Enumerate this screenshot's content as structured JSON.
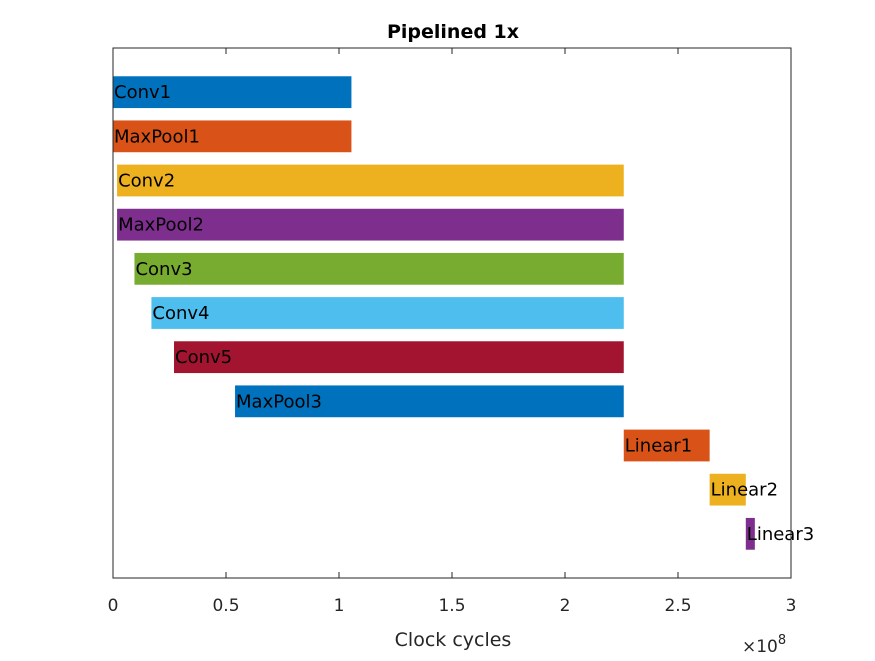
{
  "chart_data": {
    "type": "bar",
    "orientation": "horizontal-gantt",
    "title": "Pipelined 1x",
    "xlabel": "Clock cycles",
    "ylabel": "",
    "xlim": [
      0,
      3
    ],
    "x_multiplier": "×10",
    "x_multiplier_exponent": "8",
    "x_ticks": [
      "0",
      "0.5",
      "1",
      "1.5",
      "2",
      "2.5",
      "3"
    ],
    "grid": false,
    "bars": [
      {
        "label": "Conv1",
        "start": 0.0,
        "end": 1.055,
        "color": "#0072BD"
      },
      {
        "label": "MaxPool1",
        "start": 0.0,
        "end": 1.055,
        "color": "#D95319"
      },
      {
        "label": "Conv2",
        "start": 0.018,
        "end": 2.26,
        "color": "#EDB120"
      },
      {
        "label": "MaxPool2",
        "start": 0.018,
        "end": 2.26,
        "color": "#7E2F8E"
      },
      {
        "label": "Conv3",
        "start": 0.095,
        "end": 2.26,
        "color": "#77AC30"
      },
      {
        "label": "Conv4",
        "start": 0.17,
        "end": 2.26,
        "color": "#4DBEEE"
      },
      {
        "label": "Conv5",
        "start": 0.27,
        "end": 2.26,
        "color": "#A2142F"
      },
      {
        "label": "MaxPool3",
        "start": 0.54,
        "end": 2.26,
        "color": "#0072BD"
      },
      {
        "label": "Linear1",
        "start": 2.26,
        "end": 2.64,
        "color": "#D95319"
      },
      {
        "label": "Linear2",
        "start": 2.64,
        "end": 2.8,
        "color": "#EDB120"
      },
      {
        "label": "Linear3",
        "start": 2.8,
        "end": 2.84,
        "color": "#7E2F8E"
      }
    ]
  }
}
